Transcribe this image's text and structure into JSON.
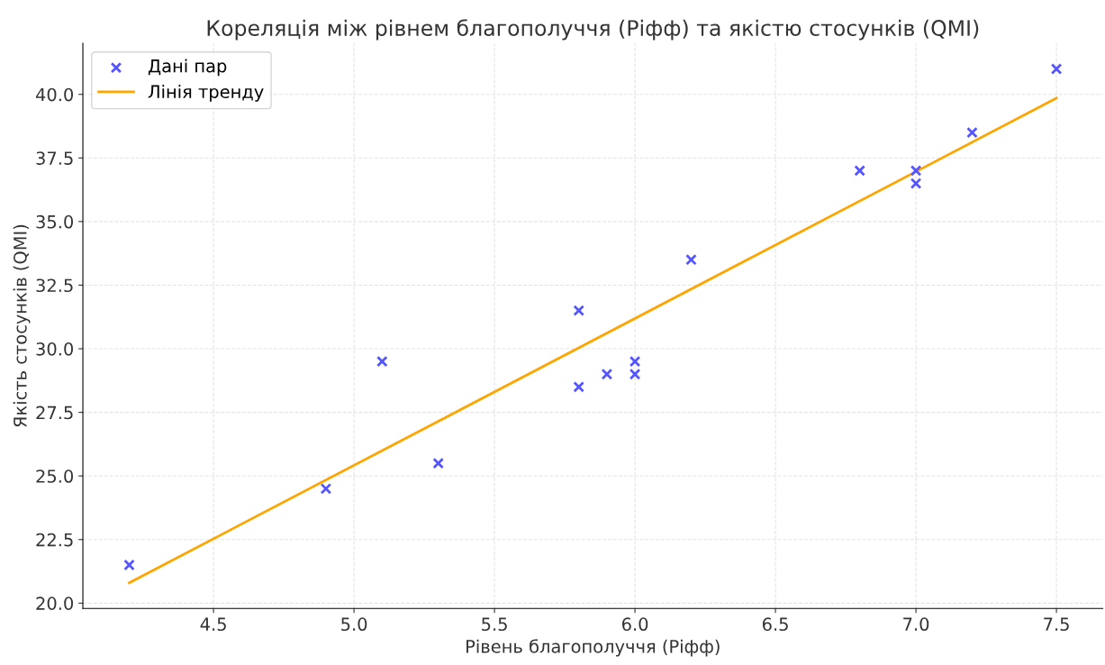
{
  "chart_data": {
    "type": "scatter",
    "title": "Кореляція між рівнем благополуччя (Ріфф) та якістю стосунків (QMI)",
    "xlabel": "Рівень благополуччя (Ріфф)",
    "ylabel": "Якість стосунків (QMI)",
    "series": [
      {
        "name": "Дані пар",
        "color": "#5555ff",
        "marker": "cross",
        "x": [
          4.2,
          4.9,
          5.1,
          5.3,
          5.8,
          5.8,
          5.9,
          6.0,
          6.0,
          6.2,
          6.8,
          7.0,
          7.0,
          7.2,
          7.5
        ],
        "values": [
          21.5,
          24.5,
          29.5,
          25.5,
          31.5,
          28.5,
          29.0,
          29.5,
          29.0,
          33.5,
          37.0,
          37.0,
          36.5,
          38.5,
          41.0
        ]
      },
      {
        "name": "Лінія тренду",
        "type": "line",
        "color": "#ffa500",
        "line_style": "solid",
        "x": [
          4.2,
          7.5
        ],
        "values": [
          20.8,
          39.85
        ]
      }
    ],
    "xlim": [
      4.035,
      7.665
    ],
    "ylim": [
      19.79,
      42.01
    ],
    "xticks": [
      4.5,
      {
        "value": 5,
        "label": "5.0"
      },
      5.5,
      {
        "value": 6,
        "label": "6.0"
      },
      6.5,
      {
        "value": 7,
        "label": "7.0"
      },
      7.5
    ],
    "yticks": [
      {
        "value": 20,
        "label": "20.0"
      },
      22.5,
      {
        "value": 25,
        "label": "25.0"
      },
      27.5,
      {
        "value": 30,
        "label": "30.0"
      },
      32.5,
      {
        "value": 35,
        "label": "35.0"
      },
      37.5,
      {
        "value": 40,
        "label": "40.0"
      }
    ],
    "grid": true,
    "legend": "top left"
  }
}
